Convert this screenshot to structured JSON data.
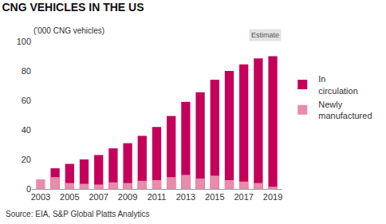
{
  "chart_data": {
    "type": "bar",
    "title": "CNG VEHICLES IN THE US",
    "subtitle": "('000 CNG vehicles)",
    "source": "Source: EIA, S&P Global Platts Analytics",
    "x": [
      2003,
      2004,
      2005,
      2006,
      2007,
      2008,
      2009,
      2010,
      2011,
      2012,
      2013,
      2014,
      2015,
      2016,
      2017,
      2018,
      2019
    ],
    "series": [
      {
        "name": "In circulation",
        "color": "#c4005a",
        "values": [
          null,
          14,
          17,
          20,
          23,
          27.5,
          31,
          36,
          42,
          49.5,
          59,
          65.5,
          74,
          80,
          84.5,
          88.5,
          90
        ]
      },
      {
        "name": "Newly manufactured",
        "color": "#e98bab",
        "values": [
          6.5,
          8,
          4,
          3.5,
          3,
          4.5,
          4,
          5.5,
          6,
          8,
          9.5,
          7,
          9,
          6,
          5,
          4,
          1.5
        ]
      }
    ],
    "stacked": false,
    "xlim": [
      2002.4,
      2019.6
    ],
    "xticks": [
      2003,
      2005,
      2007,
      2009,
      2011,
      2013,
      2015,
      2017,
      2019
    ],
    "ylim": [
      0,
      100
    ],
    "yticks": [
      0,
      20,
      40,
      60,
      80,
      100
    ],
    "grid": false,
    "legend": "right",
    "annotations": [
      {
        "text": "Estimate",
        "x": [
          2018,
          2019
        ]
      }
    ]
  }
}
